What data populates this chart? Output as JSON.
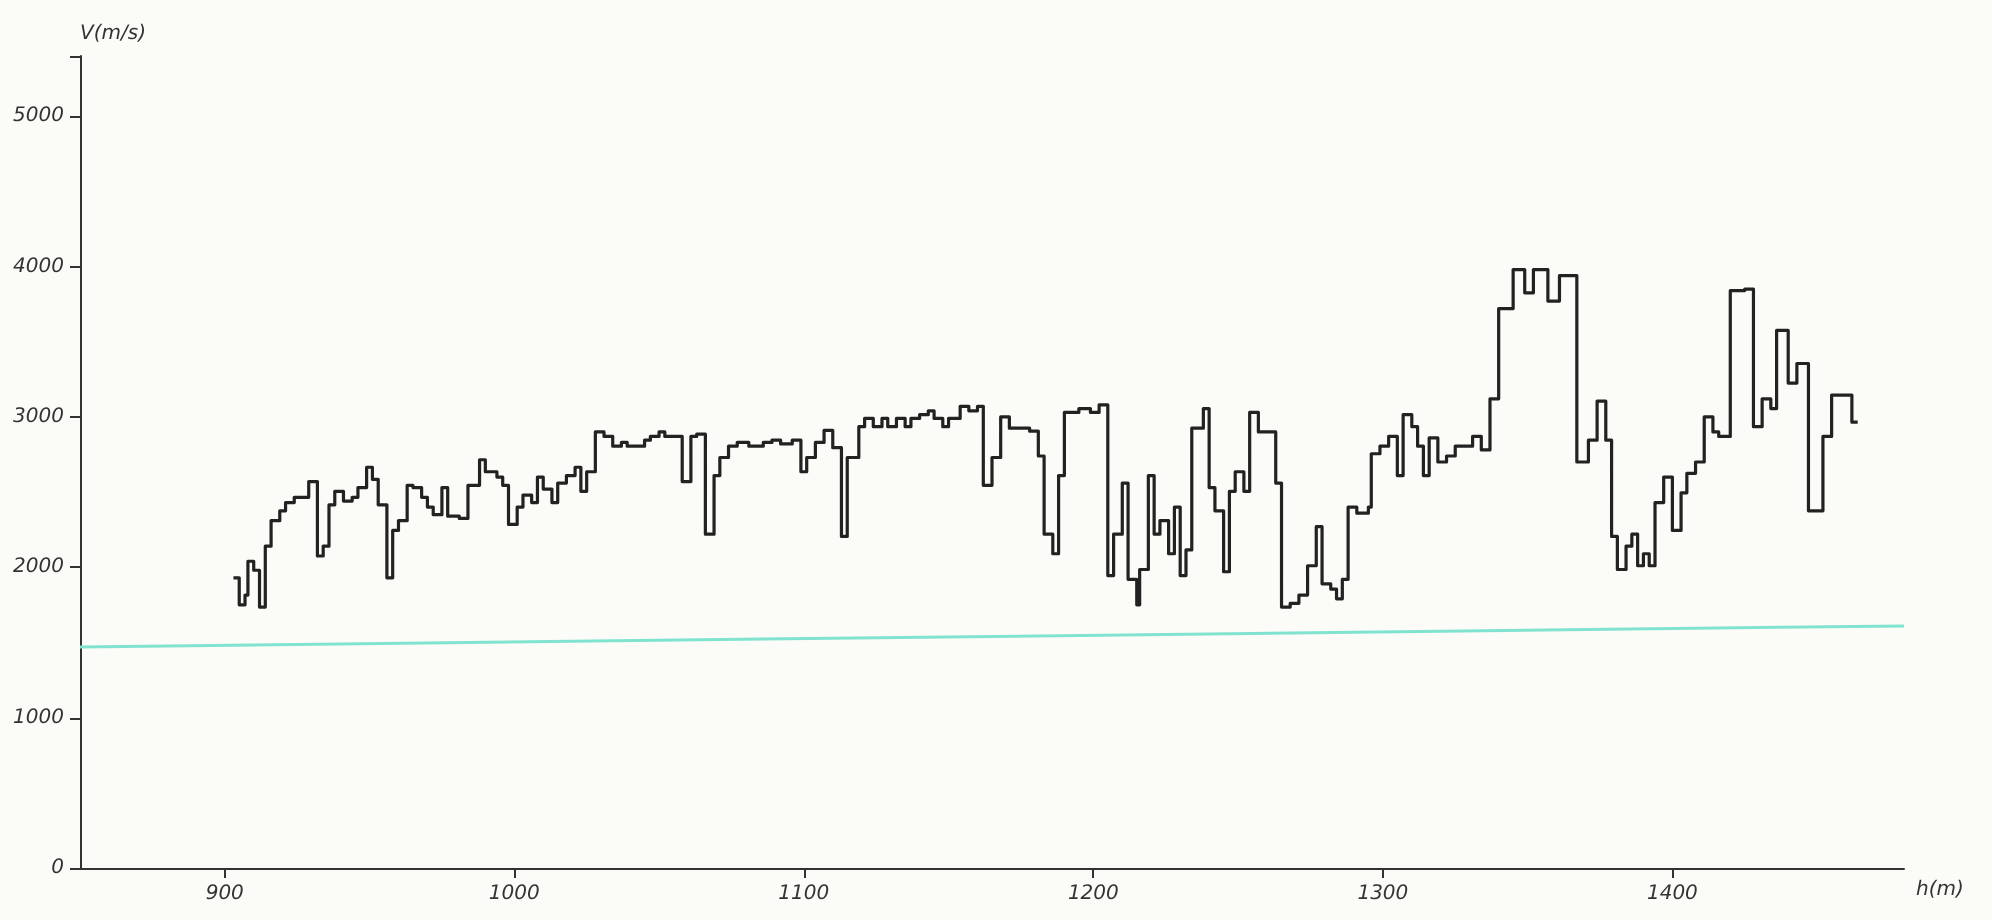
{
  "chart_data": {
    "type": "step",
    "xlabel": "h(m)",
    "ylabel": "V(m/s)",
    "xlim": [
      850,
      1480
    ],
    "xticks": [
      900,
      1000,
      1100,
      1200,
      1300,
      1400
    ],
    "ylim": [
      0,
      5400
    ],
    "yticks": [
      0,
      1000,
      2000,
      3000,
      4000,
      5000
    ],
    "marker": "none",
    "grid": false,
    "series": [
      {
        "color": "#222222",
        "x": [
          903,
          905,
          907,
          908,
          910,
          912,
          914,
          916,
          919,
          921,
          924,
          929,
          932,
          934,
          936,
          938,
          941,
          944,
          946,
          949,
          951,
          953,
          956,
          958,
          960,
          963,
          965,
          968,
          970,
          972,
          975,
          977,
          981,
          984,
          988,
          990,
          994,
          996,
          998,
          1001,
          1003,
          1006,
          1008,
          1010,
          1013,
          1015,
          1018,
          1021,
          1023,
          1025,
          1028,
          1031,
          1034,
          1037,
          1039,
          1045,
          1047,
          1050,
          1052,
          1056,
          1058,
          1061,
          1063,
          1066,
          1069,
          1071,
          1074,
          1077,
          1081,
          1086,
          1089,
          1092,
          1096,
          1099,
          1101,
          1104,
          1107,
          1110,
          1113,
          1115,
          1119,
          1121,
          1124,
          1127,
          1129,
          1132,
          1135,
          1137,
          1140,
          1143,
          1145,
          1148,
          1150,
          1154,
          1157,
          1160,
          1162,
          1165,
          1168,
          1171,
          1178,
          1181,
          1183,
          1186,
          1188,
          1190,
          1195,
          1199,
          1202,
          1205,
          1207,
          1210,
          1212,
          1215,
          1216,
          1219,
          1221,
          1223,
          1226,
          1228,
          1230,
          1232,
          1234,
          1238,
          1240,
          1242,
          1245,
          1247,
          1249,
          1252,
          1254,
          1257,
          1263,
          1265,
          1268,
          1271,
          1274,
          1277,
          1279,
          1282,
          1284,
          1286,
          1288,
          1291,
          1295,
          1296,
          1299,
          1302,
          1305,
          1307,
          1310,
          1312,
          1314,
          1316,
          1319,
          1322,
          1325,
          1331,
          1334,
          1337,
          1340,
          1345,
          1349,
          1352,
          1357,
          1361,
          1367,
          1371,
          1374,
          1377,
          1379,
          1381,
          1384,
          1386,
          1388,
          1390,
          1392,
          1394,
          1397,
          1400,
          1403,
          1405,
          1408,
          1411,
          1414,
          1416,
          1420,
          1425,
          1428,
          1431,
          1434,
          1436,
          1440,
          1443,
          1447,
          1452,
          1455,
          1462,
          1464
        ],
        "values": [
          1930,
          1750,
          1815,
          2040,
          1980,
          1735,
          2140,
          2310,
          2375,
          2430,
          2465,
          2570,
          2075,
          2140,
          2415,
          2505,
          2440,
          2465,
          2530,
          2665,
          2585,
          2415,
          1930,
          2245,
          2310,
          2545,
          2530,
          2465,
          2400,
          2350,
          2530,
          2340,
          2325,
          2545,
          2715,
          2635,
          2600,
          2545,
          2285,
          2400,
          2480,
          2430,
          2600,
          2520,
          2430,
          2560,
          2610,
          2665,
          2505,
          2635,
          2900,
          2870,
          2805,
          2830,
          2805,
          2845,
          2870,
          2900,
          2870,
          2870,
          2570,
          2870,
          2885,
          2220,
          2610,
          2730,
          2805,
          2830,
          2805,
          2830,
          2845,
          2820,
          2845,
          2635,
          2730,
          2830,
          2910,
          2795,
          2205,
          2730,
          2935,
          2990,
          2935,
          2990,
          2935,
          2990,
          2935,
          2990,
          3015,
          3040,
          2990,
          2935,
          2990,
          3070,
          3040,
          3070,
          2545,
          2730,
          3000,
          2925,
          2905,
          2740,
          2220,
          2090,
          2610,
          3030,
          3055,
          3030,
          3080,
          1945,
          2220,
          2560,
          1920,
          1750,
          1985,
          2610,
          2220,
          2310,
          2090,
          2400,
          1945,
          2115,
          2925,
          3055,
          2530,
          2375,
          1970,
          2505,
          2635,
          2505,
          3030,
          2900,
          2560,
          1735,
          1760,
          1815,
          2010,
          2270,
          1890,
          1855,
          1790,
          1920,
          2400,
          2360,
          2400,
          2755,
          2805,
          2870,
          2610,
          3015,
          2935,
          2805,
          2610,
          2860,
          2700,
          2740,
          2805,
          2870,
          2780,
          3120,
          3720,
          3980,
          3825,
          3980,
          3770,
          3940,
          2700,
          2845,
          3105,
          2845,
          2205,
          1985,
          2140,
          2220,
          2010,
          2090,
          2010,
          2430,
          2600,
          2245,
          2495,
          2625,
          2700,
          3000,
          2900,
          2870,
          3840,
          3850,
          2935,
          3120,
          3055,
          3575,
          3225,
          3355,
          2375,
          2870,
          3145,
          2965,
          2965
        ]
      },
      {
        "type": "line",
        "color": "#7fe3cf",
        "x": [
          850,
          1480
        ],
        "values": [
          1470,
          1610
        ]
      }
    ]
  }
}
